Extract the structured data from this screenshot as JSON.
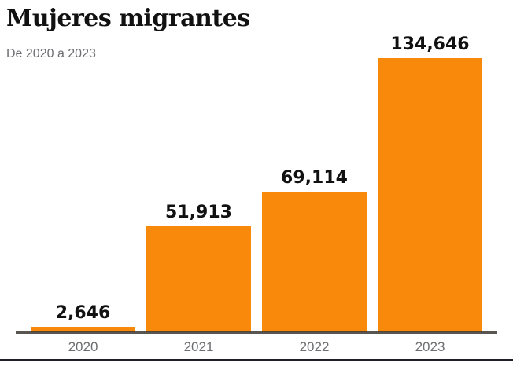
{
  "header": {
    "title": "Mujeres migrantes",
    "subtitle": "De 2020 a 2023"
  },
  "chart_data": {
    "type": "bar",
    "title": "Mujeres migrantes",
    "subtitle": "De 2020 a 2023",
    "categories": [
      "2020",
      "2021",
      "2022",
      "2023"
    ],
    "values": [
      2646,
      51913,
      69114,
      134646
    ],
    "value_labels": [
      "2,646",
      "51,913",
      "69,114",
      "134,646"
    ],
    "xlabel": "",
    "ylabel": "",
    "ylim": [
      0,
      134646
    ],
    "grid": false,
    "legend": false,
    "colors": {
      "bar": "#F8890B",
      "value_label": "#111111",
      "tick_label": "#6d6e71",
      "axis_line": "#4a4a4a",
      "bottom_rule": "#20202a",
      "title": "#111111",
      "background": "#ffffff"
    }
  }
}
